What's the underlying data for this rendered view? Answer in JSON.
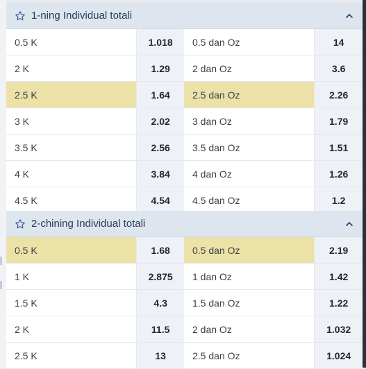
{
  "colors": {
    "header_bg": "#dde5ef",
    "highlight": "#ece1a6",
    "odd_bg": "#eef1f5",
    "title": "#283a5c"
  },
  "icons": {
    "favorite": "star-icon",
    "collapse": "chevron-up-icon"
  },
  "sections": [
    {
      "title": "1-ning Individual totali",
      "rows": [
        {
          "under_label": "0.5 K",
          "under_odd": "1.018",
          "over_label": "0.5 dan Oz",
          "over_odd": "14",
          "highlighted": false
        },
        {
          "under_label": "2 K",
          "under_odd": "1.29",
          "over_label": "2 dan Oz",
          "over_odd": "3.6",
          "highlighted": false
        },
        {
          "under_label": "2.5 K",
          "under_odd": "1.64",
          "over_label": "2.5 dan Oz",
          "over_odd": "2.26",
          "highlighted": true
        },
        {
          "under_label": "3 K",
          "under_odd": "2.02",
          "over_label": "3 dan Oz",
          "over_odd": "1.79",
          "highlighted": false
        },
        {
          "under_label": "3.5 K",
          "under_odd": "2.56",
          "over_label": "3.5 dan Oz",
          "over_odd": "1.51",
          "highlighted": false
        },
        {
          "under_label": "4 K",
          "under_odd": "3.84",
          "over_label": "4 dan Oz",
          "over_odd": "1.26",
          "highlighted": false
        },
        {
          "under_label": "4.5 K",
          "under_odd": "4.54",
          "over_label": "4.5 dan Oz",
          "over_odd": "1.2",
          "highlighted": false
        }
      ]
    },
    {
      "title": "2-chining Individual totali",
      "rows": [
        {
          "under_label": "0.5 K",
          "under_odd": "1.68",
          "over_label": "0.5 dan Oz",
          "over_odd": "2.19",
          "highlighted": true
        },
        {
          "under_label": "1 K",
          "under_odd": "2.875",
          "over_label": "1 dan Oz",
          "over_odd": "1.42",
          "highlighted": false
        },
        {
          "under_label": "1.5 K",
          "under_odd": "4.3",
          "over_label": "1.5 dan Oz",
          "over_odd": "1.22",
          "highlighted": false
        },
        {
          "under_label": "2 K",
          "under_odd": "11.5",
          "over_label": "2 dan Oz",
          "over_odd": "1.032",
          "highlighted": false
        },
        {
          "under_label": "2.5 K",
          "under_odd": "13",
          "over_label": "2.5 dan Oz",
          "over_odd": "1.024",
          "highlighted": false
        }
      ]
    }
  ]
}
